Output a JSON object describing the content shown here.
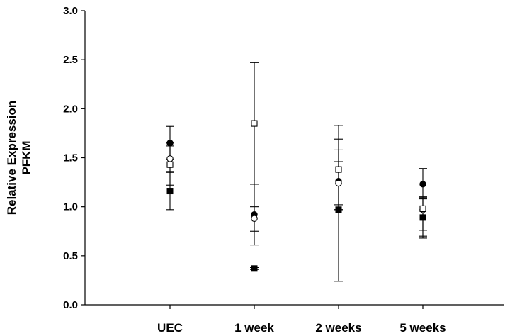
{
  "chart_data": {
    "type": "scatter",
    "title": "",
    "xlabel": "",
    "ylabel": [
      "Relative Expression",
      "PFKM"
    ],
    "categories": [
      "UEC",
      "1 week",
      "2 weeks",
      "5 weeks"
    ],
    "ylim": [
      0,
      3.0
    ],
    "yticks": [
      "0.0",
      "0.5",
      "1.0",
      "1.5",
      "2.0",
      "2.5",
      "3.0"
    ],
    "grid": false,
    "legend": "none",
    "series": [
      {
        "marker": "filled-circle",
        "values": [
          1.65,
          0.92,
          1.26,
          1.23
        ],
        "err_low": [
          1.48,
          0.61,
          0.97,
          1.1
        ],
        "err_high": [
          1.82,
          1.23,
          1.58,
          1.39
        ]
      },
      {
        "marker": "open-circle",
        "values": [
          1.49,
          0.88,
          1.24,
          0.97
        ],
        "err_low": [
          1.35,
          0.75,
          1.02,
          0.76
        ],
        "err_high": [
          1.62,
          1.0,
          1.46,
          1.1
        ]
      },
      {
        "marker": "open-square",
        "values": [
          1.43,
          1.85,
          1.38,
          0.98
        ],
        "err_low": [
          1.22,
          1.23,
          0.97,
          0.7
        ],
        "err_high": [
          1.65,
          2.47,
          1.83,
          1.08
        ]
      },
      {
        "marker": "filled-square",
        "values": [
          1.16,
          0.37,
          0.97,
          0.89
        ],
        "err_low": [
          0.97,
          0.36,
          0.24,
          0.68
        ],
        "err_high": [
          1.36,
          0.38,
          1.69,
          1.09
        ]
      }
    ]
  }
}
